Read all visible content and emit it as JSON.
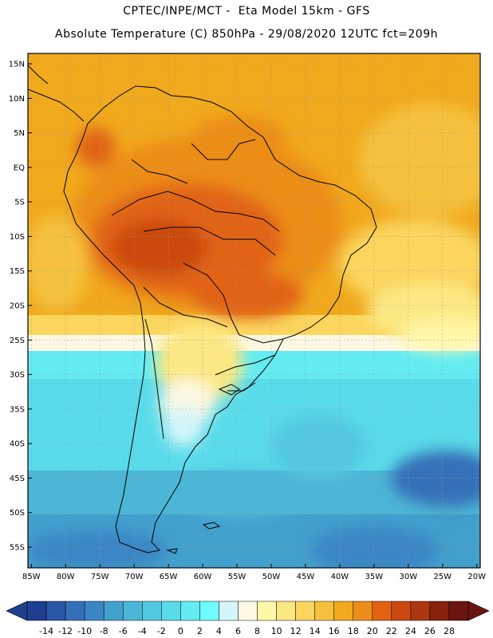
{
  "header": {
    "line1": "CPTEC/INPE/MCT -  Eta Model 15km - GFS",
    "line2": "Absolute Temperature (C) 850hPa - 29/08/2020 12UTC fct=209h"
  },
  "map": {
    "lat_labels": [
      "15N",
      "10N",
      "5N",
      "EQ",
      "5S",
      "10S",
      "15S",
      "20S",
      "25S",
      "30S",
      "35S",
      "40S",
      "45S",
      "50S",
      "55S"
    ],
    "lon_labels": [
      "85W",
      "80W",
      "75W",
      "70W",
      "65W",
      "60W",
      "55W",
      "50W",
      "45W",
      "40W",
      "35W",
      "30W",
      "25W",
      "20W"
    ],
    "lat_range": [
      -58,
      16.5
    ],
    "lon_range": [
      -85.5,
      -19.5
    ],
    "grid": true
  },
  "colorbar": {
    "labels": [
      "-14",
      "-12",
      "-10",
      "-8",
      "-6",
      "-4",
      "-2",
      "0",
      "2",
      "4",
      "6",
      "8",
      "10",
      "12",
      "14",
      "16",
      "18",
      "20",
      "22",
      "24",
      "26",
      "28"
    ],
    "colors": [
      "#1e3f8f",
      "#2a56a6",
      "#3470b8",
      "#3b86c4",
      "#42a0cd",
      "#4cb6d6",
      "#52c8e0",
      "#5adbea",
      "#64ecf2",
      "#6ffdfd",
      "#d4f6fb",
      "#fdf8e3",
      "#fef8a8",
      "#fce882",
      "#fbd65f",
      "#f5c13c",
      "#f1a91d",
      "#ec8d19",
      "#e16412",
      "#cb4910",
      "#ad3710",
      "#86220d",
      "#6b1512"
    ]
  }
}
